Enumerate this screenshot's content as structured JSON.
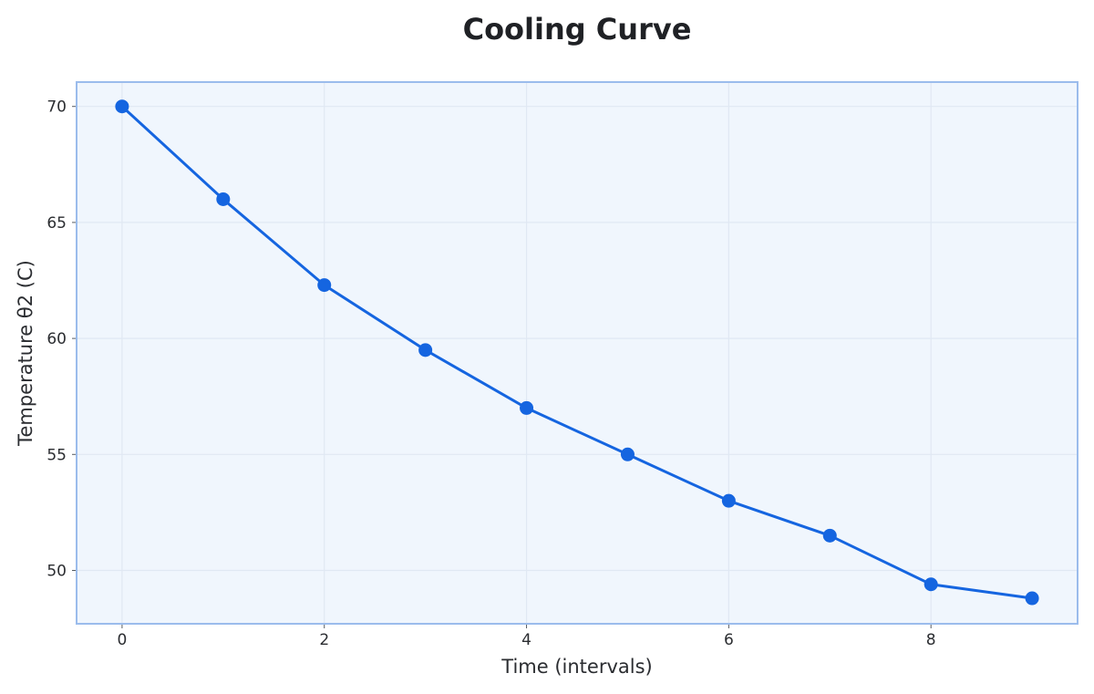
{
  "chart_data": {
    "type": "line",
    "title": "Cooling Curve",
    "xlabel": "Time (intervals)",
    "ylabel": "Temperature θ2 (C)",
    "xlim": [
      -0.45,
      9.45
    ],
    "ylim": [
      47.7,
      71.05
    ],
    "xticks": [
      0,
      2,
      4,
      6,
      8
    ],
    "yticks": [
      50,
      55,
      60,
      65,
      70
    ],
    "grid": true,
    "legend": "none",
    "series": [
      {
        "name": "θ2",
        "x": [
          0,
          1,
          2,
          3,
          4,
          5,
          6,
          7,
          8,
          9
        ],
        "values": [
          70.0,
          66.0,
          62.3,
          59.5,
          57.0,
          55.0,
          53.0,
          51.5,
          49.4,
          48.8
        ]
      }
    ]
  },
  "colors": {
    "line": "#1565e0",
    "marker": "#1565e0",
    "plot_background": "#f0f6fd",
    "plot_border": "#9bbcec",
    "grid": "#e0e8f3",
    "text": "#2b2d31"
  }
}
